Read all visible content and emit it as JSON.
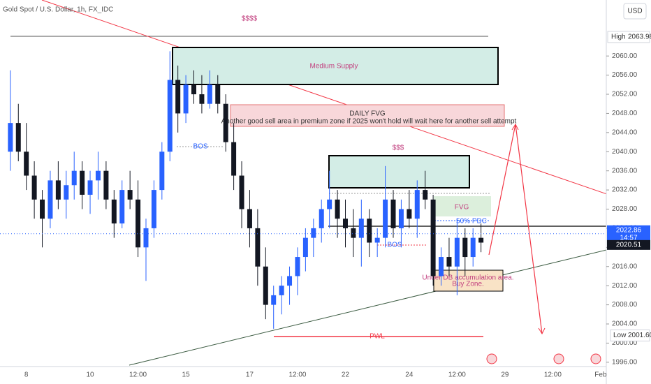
{
  "chart_data": {
    "type": "candlestick",
    "title": "Gold Spot / U.S. Dollar, 1h, FX_IDC",
    "currency": "USD",
    "categories": [
      null,
      null,
      "8",
      null,
      null,
      null,
      null,
      null,
      null,
      null,
      "10",
      null,
      null,
      null,
      null,
      null,
      "12:00",
      null,
      null,
      null,
      null,
      null,
      "15",
      null,
      null,
      null,
      null,
      null,
      null,
      null,
      "17",
      null,
      null,
      null,
      null,
      null,
      "12:00",
      null,
      null,
      null,
      null,
      null,
      "22",
      null,
      null,
      null,
      null,
      null,
      null,
      null,
      "24",
      null,
      null,
      null,
      null,
      null,
      "12:00",
      null,
      null,
      null,
      null,
      null,
      "29",
      null,
      null,
      null,
      null,
      null,
      "12:00",
      null,
      null,
      null,
      null,
      null,
      "Feb"
    ],
    "open": [
      2040,
      2046,
      2040,
      2035,
      2030,
      2026,
      2034,
      2030,
      2033,
      2036,
      2031,
      2034,
      2036,
      2030,
      2025,
      2032,
      2030,
      2020,
      2024,
      2032,
      2040,
      2055,
      2048,
      2054,
      2052,
      2050,
      2054,
      2050,
      2042,
      2035,
      2028,
      2024,
      2016,
      2008,
      2010,
      2012,
      2014,
      2018,
      2022,
      2024,
      2028,
      2030,
      2026,
      2024,
      2022,
      2026,
      2021,
      2022,
      2030,
      2024,
      2028,
      2026,
      2032,
      2030,
      2014,
      2018,
      2016,
      2022,
      2018,
      2022,
      null,
      null,
      null,
      null,
      null,
      null,
      null,
      null,
      null,
      null,
      null,
      null,
      null,
      null,
      null
    ],
    "high": [
      2057,
      2050,
      2046,
      2038,
      2032,
      2036,
      2038,
      2036,
      2040,
      2038,
      2036,
      2040,
      2038,
      2032,
      2034,
      2036,
      2034,
      2026,
      2034,
      2042,
      2061,
      2058,
      2056,
      2057,
      2056,
      2057,
      2056,
      2052,
      2046,
      2038,
      2032,
      2028,
      2020,
      2012,
      2014,
      2016,
      2020,
      2024,
      2026,
      2030,
      2036,
      2032,
      2030,
      2028,
      2030,
      2028,
      2024,
      2037,
      2032,
      2030,
      2032,
      2034,
      2036,
      2031,
      2020,
      2022,
      2026,
      2024,
      2024,
      2025,
      null,
      null,
      null,
      null,
      null,
      null,
      null,
      null,
      null,
      null,
      null,
      null,
      null,
      null,
      null
    ],
    "low": [
      2036,
      2038,
      2032,
      2026,
      2020,
      2024,
      2028,
      2026,
      2030,
      2028,
      2027,
      2030,
      2028,
      2022,
      2024,
      2028,
      2018,
      2013,
      2022,
      2030,
      2038,
      2044,
      2046,
      2050,
      2048,
      2049,
      2048,
      2040,
      2032,
      2024,
      2020,
      2012,
      2005,
      2003,
      2006,
      2008,
      2010,
      2015,
      2018,
      2021,
      2024,
      2022,
      2020,
      2018,
      2016,
      2018,
      2018,
      2020,
      2022,
      2020,
      2024,
      2022,
      2028,
      2012,
      2012,
      2014,
      2010,
      2014,
      2016,
      2019,
      null,
      null,
      null,
      null,
      null,
      null,
      null,
      null,
      null,
      null,
      null,
      null,
      null,
      null,
      null
    ],
    "close": [
      2046,
      2040,
      2035,
      2030,
      2026,
      2034,
      2030,
      2033,
      2036,
      2031,
      2034,
      2036,
      2030,
      2025,
      2032,
      2030,
      2020,
      2024,
      2032,
      2040,
      2055,
      2048,
      2054,
      2052,
      2050,
      2054,
      2050,
      2042,
      2035,
      2028,
      2024,
      2016,
      2008,
      2010,
      2012,
      2014,
      2018,
      2022,
      2024,
      2028,
      2030,
      2026,
      2024,
      2022,
      2026,
      2021,
      2022,
      2030,
      2024,
      2028,
      2026,
      2032,
      2030,
      2014,
      2018,
      2016,
      2022,
      2018,
      2022,
      2021,
      null,
      null,
      null,
      null,
      null,
      null,
      null,
      null,
      null,
      null,
      null,
      null,
      null,
      null,
      null
    ],
    "up_color": "#2962ff",
    "down_color": "#131722",
    "ylim": [
      1995.1,
      2071.7
    ],
    "yticks": [
      {
        "value": 1996,
        "label": "1996.00"
      },
      {
        "value": 2000,
        "label": "2000.00"
      },
      {
        "value": 2004,
        "label": "2004.00"
      },
      {
        "value": 2008,
        "label": "2008.00"
      },
      {
        "value": 2012,
        "label": "2012.00"
      },
      {
        "value": 2016,
        "label": "2016.00"
      },
      {
        "value": 2020,
        "label": "2020.00"
      },
      {
        "value": 2024,
        "label": "2024.00"
      },
      {
        "value": 2028,
        "label": "2028.00"
      },
      {
        "value": 2032,
        "label": "2032.00"
      },
      {
        "value": 2036,
        "label": "2036.00"
      },
      {
        "value": 2040,
        "label": "2040.00"
      },
      {
        "value": 2044,
        "label": "2044.00"
      },
      {
        "value": 2048,
        "label": "2048.00"
      },
      {
        "value": 2052,
        "label": "2052.00"
      },
      {
        "value": 2056,
        "label": "2056.00"
      },
      {
        "value": 2060,
        "label": "2060.00"
      }
    ],
    "high_marker": {
      "name": "High",
      "value": 2063.98
    },
    "low_marker": {
      "name": "Low",
      "value": 2001.6,
      "value_label": "2001.60"
    },
    "last_price": {
      "value": 2022.86,
      "countdown": "14:57"
    },
    "prev_price": {
      "value": 2020.51
    },
    "annotations": {
      "top_liquidity": "$$$$",
      "supply": "Medium Supply",
      "fvg_title": "DAILY FVG",
      "fvg_note": "Another good sell area in premium zone if 2025 won't hold will wait here for another sell attempt",
      "bos_1": "BOS",
      "mid_liquidity": "$$$",
      "fvg_small": "FVG",
      "pdc": "50% PDC",
      "bos_2": "BOS",
      "buy_zone_1": "Under DB accumulation area.",
      "buy_zone_2": "Buy Zone.",
      "pwl": "PWL"
    }
  }
}
